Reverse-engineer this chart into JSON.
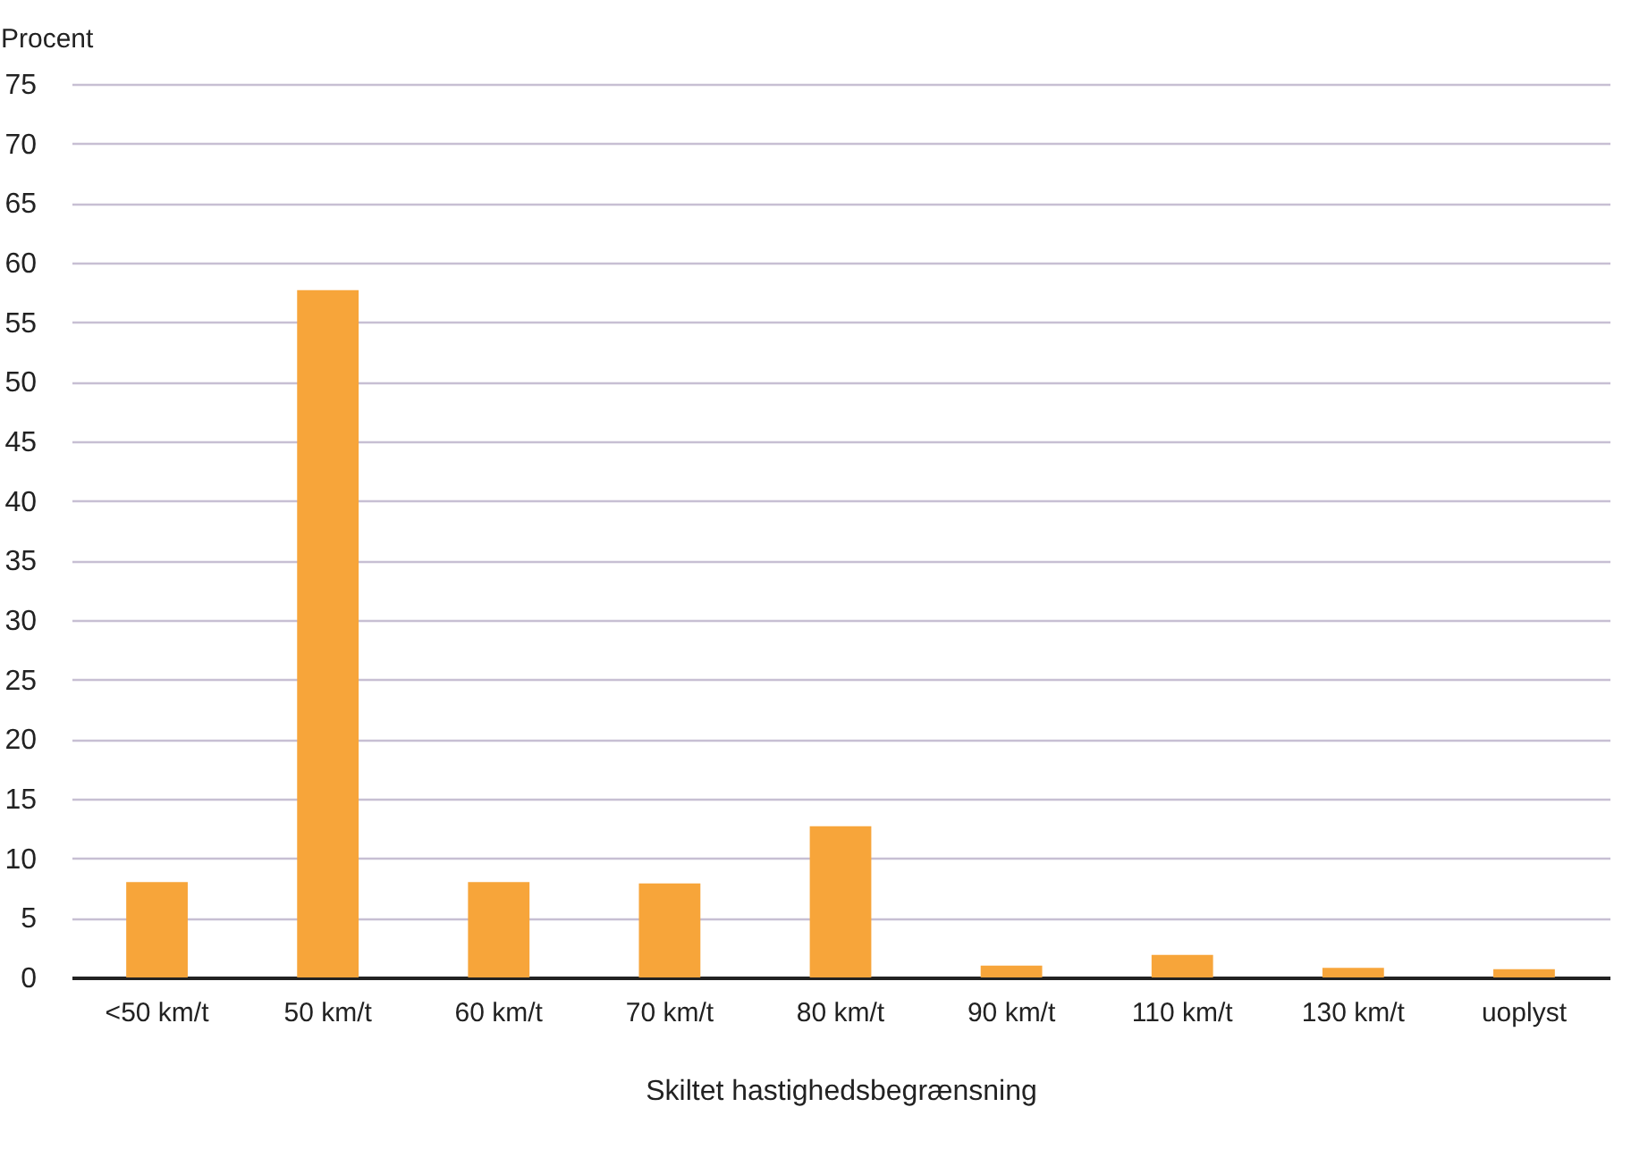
{
  "chart_data": {
    "type": "bar",
    "ylabel": "Procent",
    "xlabel": "Skiltet hastighedsbegrænsning",
    "categories": [
      "<50 km/t",
      "50 km/t",
      "60 km/t",
      "70 km/t",
      "80 km/t",
      "90 km/t",
      "110 km/t",
      "130 km/t",
      "uoplyst"
    ],
    "values": [
      8,
      57.7,
      8,
      7.9,
      12.7,
      1,
      1.9,
      0.8,
      0.7
    ],
    "color": "#f7a53a",
    "ylim": [
      0,
      75
    ],
    "yticks": [
      0,
      5,
      10,
      15,
      20,
      25,
      30,
      35,
      40,
      45,
      50,
      55,
      60,
      65,
      70,
      75
    ],
    "grid": "y"
  }
}
